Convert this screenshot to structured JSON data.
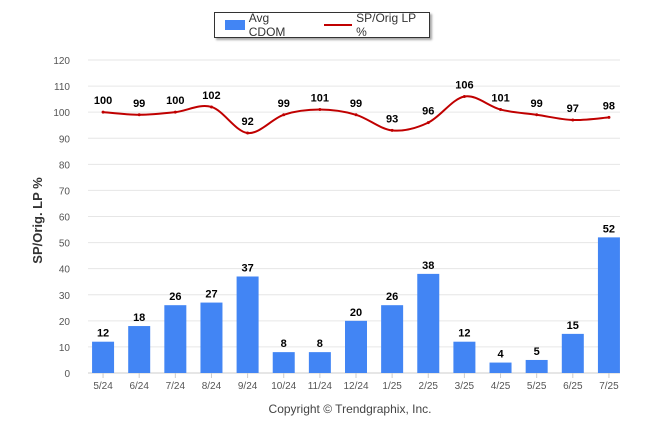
{
  "legend": {
    "bar_label": "Avg CDOM",
    "line_label": "SP/Orig LP %"
  },
  "colors": {
    "bar": "#4285f4",
    "line": "#c00000",
    "grid": "#e6e6e6",
    "axis_text": "#555555"
  },
  "copyright": "Copyright © Trendgraphix, Inc.",
  "chart_data": {
    "type": "bar",
    "title": "",
    "xlabel": "",
    "ylabel": "SP/Orig. LP %",
    "ylim": [
      0,
      120
    ],
    "yticks": [
      0,
      10,
      20,
      30,
      40,
      50,
      60,
      70,
      80,
      90,
      100,
      110,
      120
    ],
    "grid": true,
    "legend_position": "top-center",
    "categories": [
      "5/24",
      "6/24",
      "7/24",
      "8/24",
      "9/24",
      "10/24",
      "11/24",
      "12/24",
      "1/25",
      "2/25",
      "3/25",
      "4/25",
      "5/25",
      "6/25",
      "7/25"
    ],
    "series": [
      {
        "name": "Avg CDOM",
        "type": "bar",
        "values": [
          12,
          18,
          26,
          27,
          37,
          8,
          8,
          20,
          26,
          38,
          12,
          4,
          5,
          15,
          52
        ]
      },
      {
        "name": "SP/Orig LP %",
        "type": "line",
        "values": [
          100,
          99,
          100,
          102,
          92,
          99,
          101,
          99,
          93,
          96,
          106,
          101,
          99,
          97,
          98
        ]
      }
    ]
  }
}
